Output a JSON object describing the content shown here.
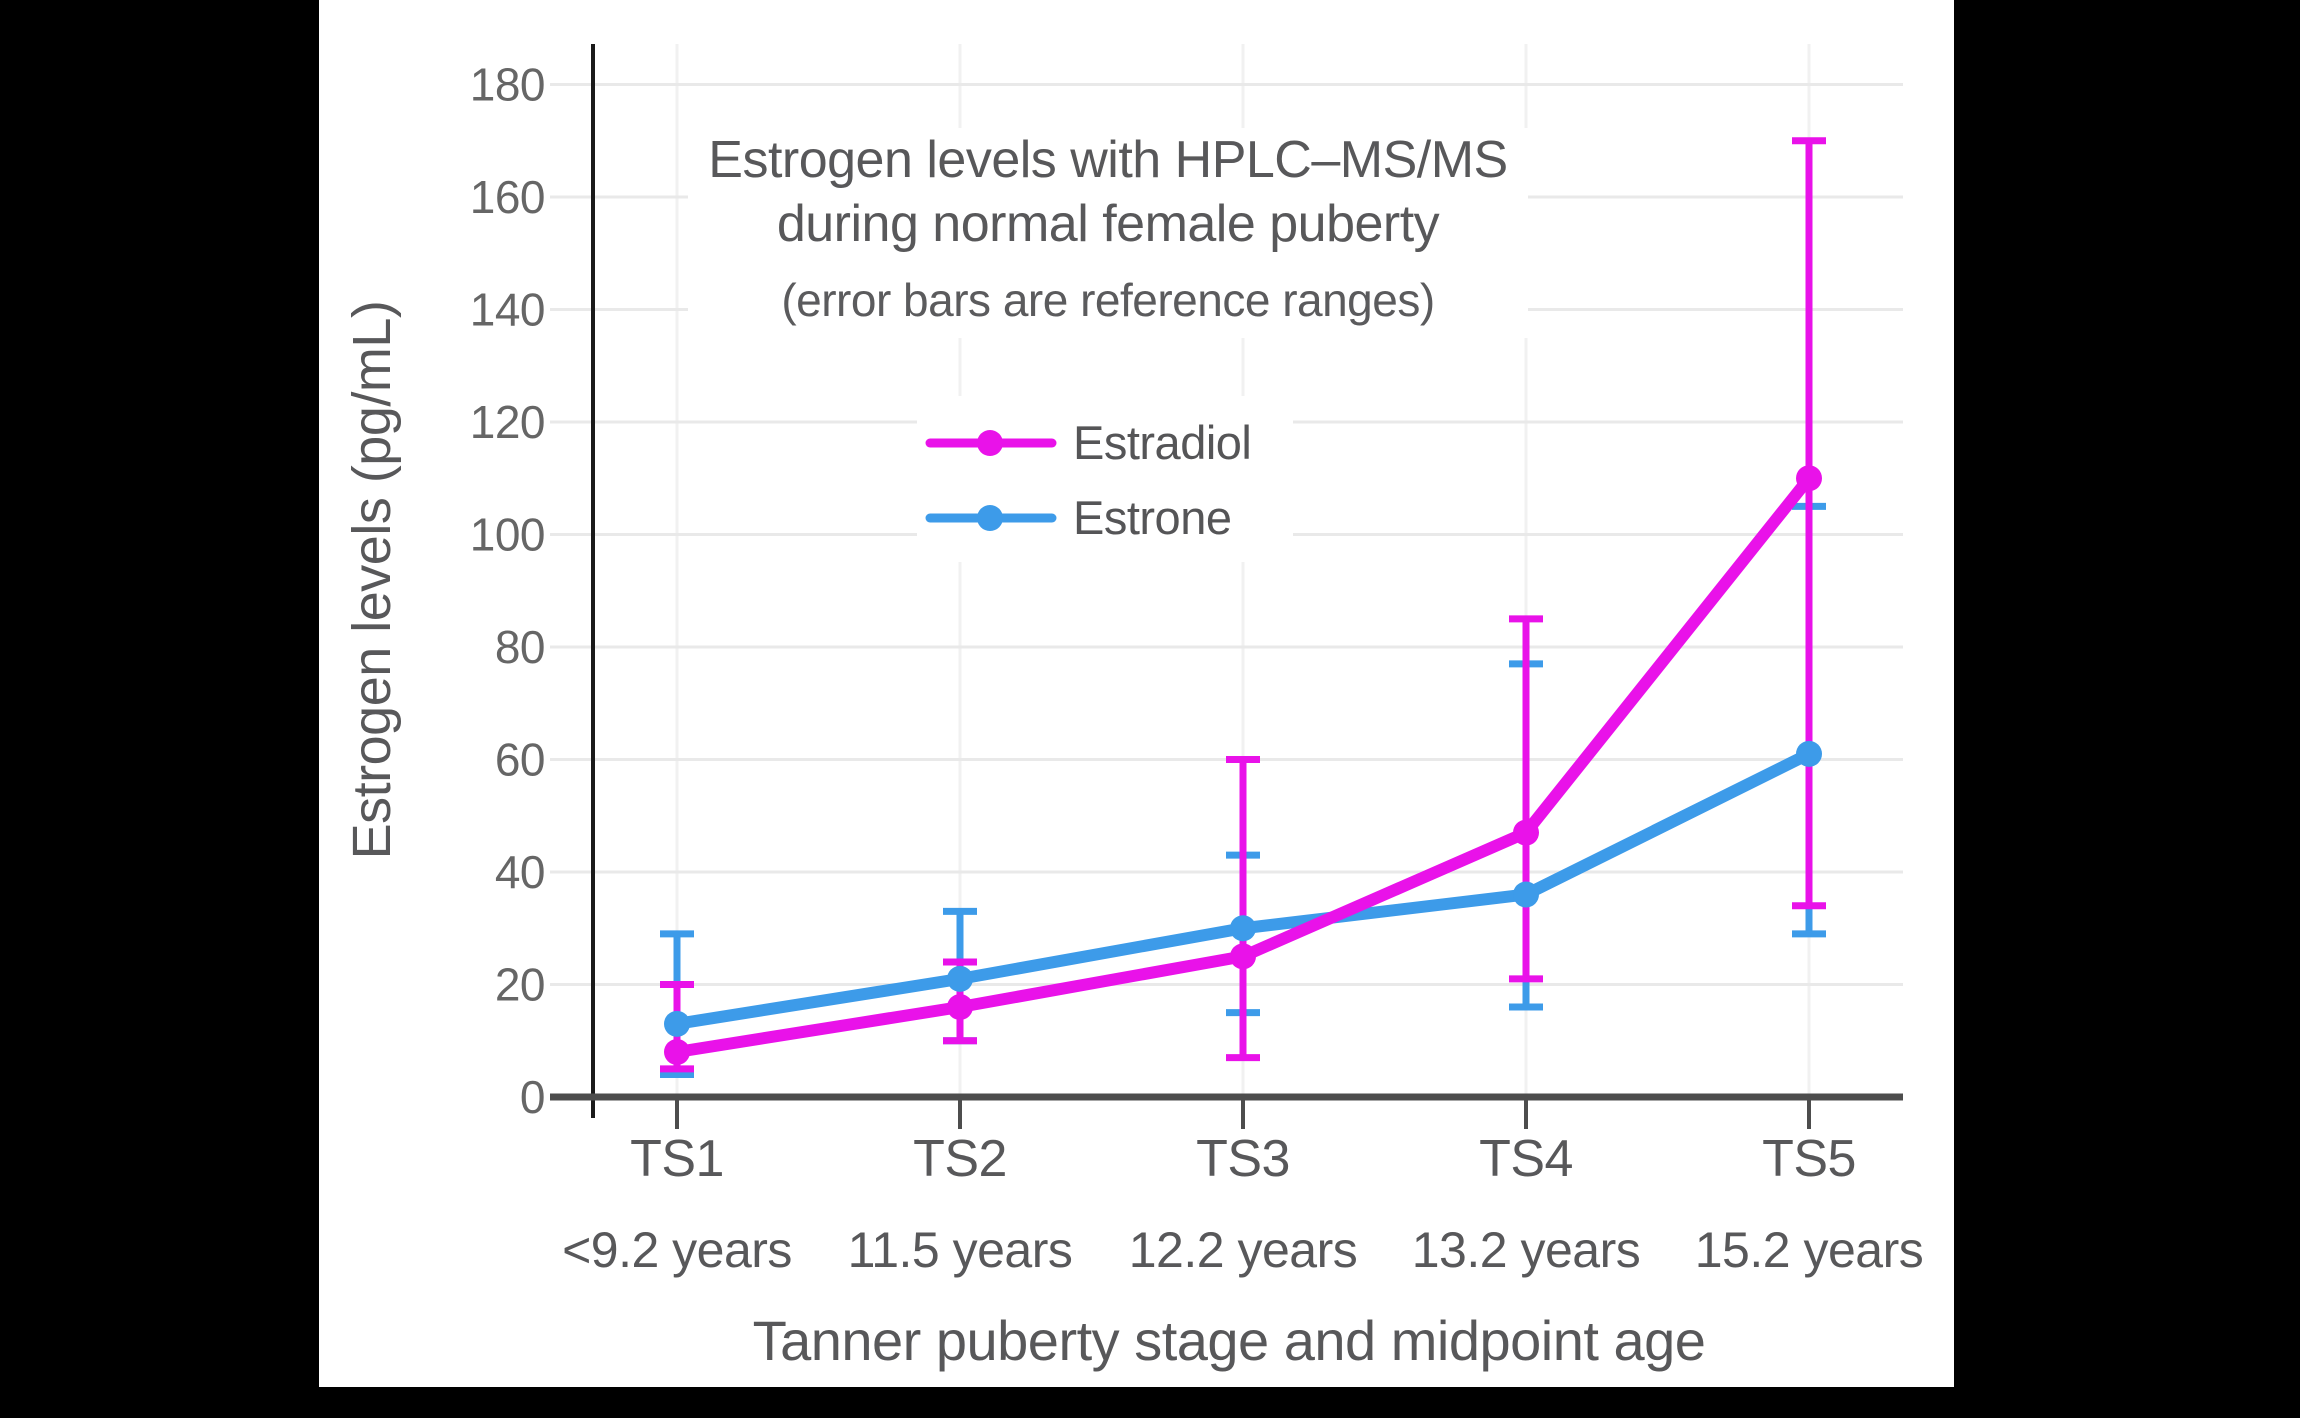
{
  "window": {
    "background_color": "#000000",
    "canvas_color": "#ffffff"
  },
  "colors": {
    "estradiol": "#E912E9",
    "estrone": "#3D9BE9",
    "title_text": "#58585A",
    "tick_label_text": "#666666",
    "x_axis_line": "#4D4D4D",
    "y_axis_line": "#1A1A1A",
    "h_gridline": "#E9E9E9",
    "v_gridline": "#F1F1F1"
  },
  "chart_data": {
    "type": "line",
    "title_line1": "Estrogen levels with HPLC–MS/MS",
    "title_line2": "during normal female puberty",
    "subtitle": "(error bars are reference ranges)",
    "xlabel": "Tanner puberty stage and midpoint age",
    "ylabel": "Estrogen levels (pg/mL)",
    "categories": [
      "TS1",
      "TS2",
      "TS3",
      "TS4",
      "TS5"
    ],
    "category_ages": [
      "<9.2 years",
      "11.5 years",
      "12.2 years",
      "13.2 years",
      "15.2 years"
    ],
    "y_ticks": [
      0,
      20,
      40,
      60,
      80,
      100,
      120,
      140,
      160,
      180
    ],
    "ylim": [
      0,
      187
    ],
    "grid": true,
    "legend_position": "inside-upper-center",
    "error_bars": "reference ranges",
    "series": [
      {
        "name": "Estradiol",
        "color": "#E912E9",
        "values": [
          8,
          16,
          25,
          47,
          110
        ],
        "err_low": [
          5,
          10,
          7,
          21,
          34
        ],
        "err_high": [
          20,
          24,
          60,
          85,
          170
        ]
      },
      {
        "name": "Estrone",
        "color": "#3D9BE9",
        "values": [
          13,
          21,
          30,
          36,
          61
        ],
        "err_low": [
          4,
          10,
          15,
          16,
          29
        ],
        "err_high": [
          29,
          33,
          43,
          77,
          105
        ]
      }
    ]
  }
}
